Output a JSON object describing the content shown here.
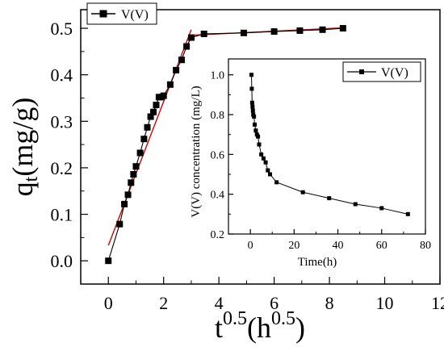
{
  "chart_data": [
    {
      "type": "scatter",
      "panel": "main",
      "xlabel": {
        "base1": "t",
        "sup1": "0.5",
        "base2": "(h",
        "sup2": "0.5",
        "base3": ")"
      },
      "ylabel": {
        "base": "q",
        "sub": "t",
        "rest": "(mg/g)"
      },
      "xlim": [
        -1,
        12
      ],
      "ylim": [
        -0.05,
        0.54
      ],
      "xticks": [
        0,
        2,
        4,
        6,
        8,
        10,
        12
      ],
      "yticks": [
        0.0,
        0.1,
        0.2,
        0.3,
        0.4,
        0.5
      ],
      "xtick_labels": [
        "0",
        "2",
        "4",
        "6",
        "8",
        "10",
        "12"
      ],
      "ytick_labels": [
        "0.0",
        "0.1",
        "0.2",
        "0.3",
        "0.4",
        "0.5"
      ],
      "legend": {
        "label": "V(V)",
        "placement": "top-left"
      },
      "series": [
        {
          "name": "V(V)",
          "marker": "square",
          "color": "#000000",
          "x": [
            0,
            0.41,
            0.58,
            0.71,
            0.82,
            0.91,
            1.0,
            1.15,
            1.29,
            1.41,
            1.53,
            1.63,
            1.73,
            1.83,
            1.91,
            2.0,
            2.24,
            2.45,
            2.65,
            2.83,
            3.0,
            3.46,
            4.9,
            6.0,
            6.93,
            7.75,
            8.49
          ],
          "y": [
            0.0,
            0.079,
            0.122,
            0.142,
            0.168,
            0.186,
            0.203,
            0.232,
            0.262,
            0.287,
            0.31,
            0.32,
            0.335,
            0.352,
            0.352,
            0.355,
            0.379,
            0.41,
            0.432,
            0.461,
            0.48,
            0.488,
            0.49,
            0.493,
            0.495,
            0.497,
            0.5
          ]
        }
      ],
      "fit_lines": [
        {
          "color": "#d40000",
          "x": [
            0,
            3.0
          ],
          "y": [
            0.033,
            0.497
          ]
        },
        {
          "color": "#d40000",
          "x": [
            3.0,
            8.5
          ],
          "y": [
            0.485,
            0.501
          ]
        }
      ]
    },
    {
      "type": "line",
      "panel": "inset",
      "xlabel": "Time(h)",
      "ylabel": "V(V) concentration (mg/L)",
      "xlim": [
        -10,
        80
      ],
      "ylim": [
        0.2,
        1.08
      ],
      "xticks": [
        0,
        20,
        40,
        60,
        80
      ],
      "yticks": [
        0.2,
        0.4,
        0.6,
        0.8,
        1.0
      ],
      "xtick_labels": [
        "0",
        "20",
        "40",
        "60",
        "80"
      ],
      "ytick_labels": [
        "0.2",
        "0.4",
        "0.6",
        "0.8",
        "1.0"
      ],
      "legend": {
        "label": "V(V)",
        "placement": "top-right"
      },
      "series": [
        {
          "name": "V(V)",
          "marker": "square",
          "color": "#000000",
          "x": [
            0.5,
            0.67,
            0.83,
            1.0,
            1.17,
            1.33,
            1.67,
            2.0,
            2.5,
            3.0,
            3.5,
            4.0,
            5.0,
            6.0,
            7.0,
            8.0,
            9.0,
            12.0,
            24.0,
            36.0,
            48.0,
            60.0,
            72.0
          ],
          "y": [
            1.0,
            0.93,
            0.86,
            0.84,
            0.82,
            0.8,
            0.79,
            0.75,
            0.72,
            0.7,
            0.69,
            0.65,
            0.6,
            0.58,
            0.56,
            0.52,
            0.5,
            0.46,
            0.41,
            0.38,
            0.35,
            0.33,
            0.3
          ]
        }
      ]
    }
  ]
}
